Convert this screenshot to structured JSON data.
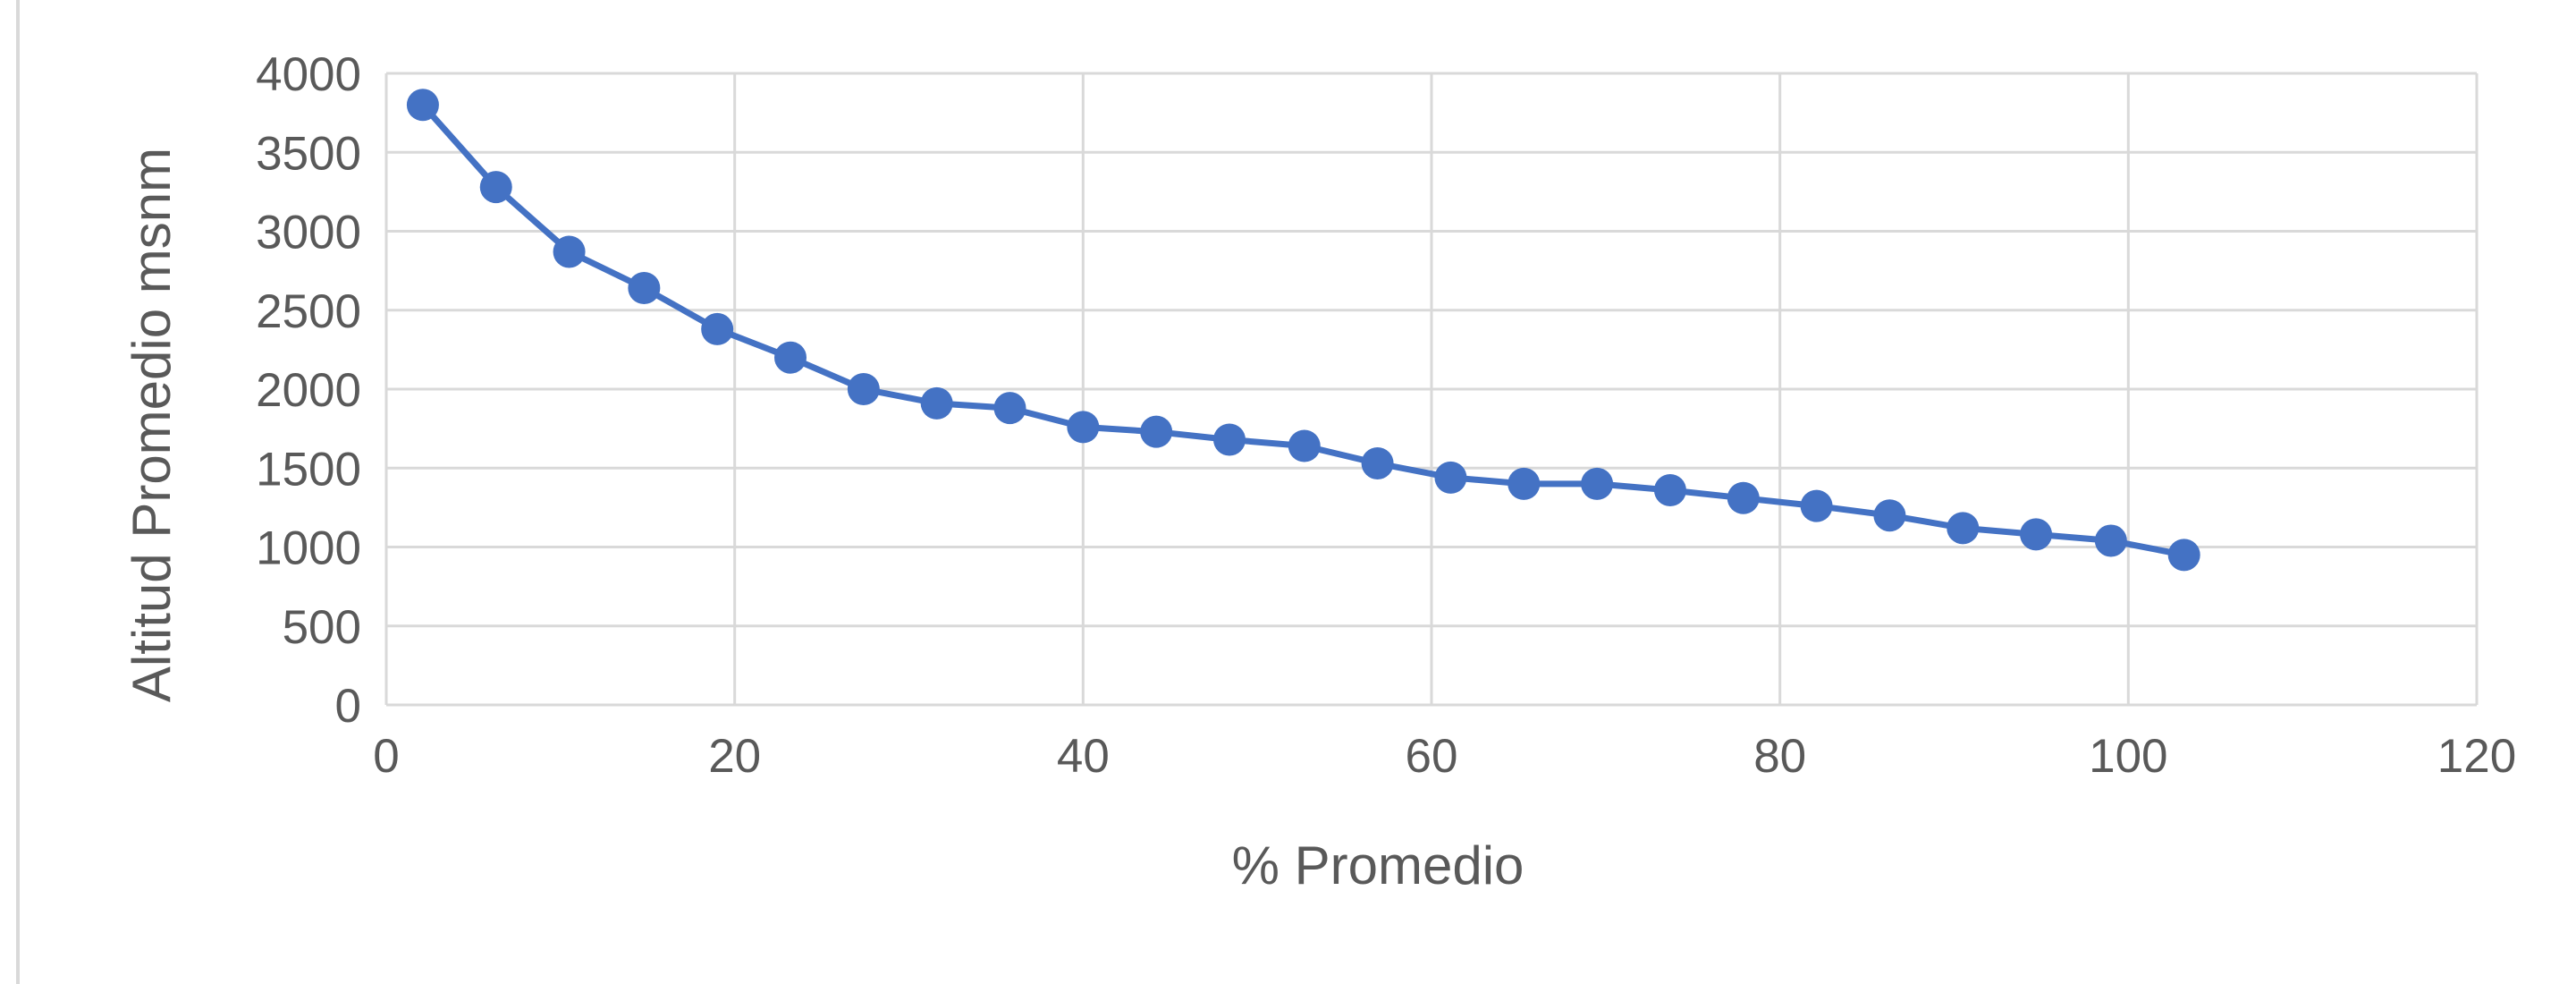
{
  "chart_data": {
    "type": "line",
    "title": "",
    "xlabel": "% Promedio",
    "ylabel": "Altitud Promedio  msnm",
    "xlim": [
      0,
      120
    ],
    "ylim": [
      0,
      4000
    ],
    "xticks": [
      0,
      20,
      40,
      60,
      80,
      100,
      120
    ],
    "yticks": [
      0,
      500,
      1000,
      1500,
      2000,
      2500,
      3000,
      3500,
      4000
    ],
    "grid": true,
    "legend": "none",
    "markers": true,
    "series": [
      {
        "color": "#4472c4",
        "points": [
          {
            "x": 2.1,
            "y": 3800
          },
          {
            "x": 6.3,
            "y": 3280
          },
          {
            "x": 10.5,
            "y": 2870
          },
          {
            "x": 14.8,
            "y": 2640
          },
          {
            "x": 19.0,
            "y": 2380
          },
          {
            "x": 23.2,
            "y": 2200
          },
          {
            "x": 27.4,
            "y": 2000
          },
          {
            "x": 31.6,
            "y": 1910
          },
          {
            "x": 35.8,
            "y": 1880
          },
          {
            "x": 40.0,
            "y": 1760
          },
          {
            "x": 44.2,
            "y": 1730
          },
          {
            "x": 48.4,
            "y": 1680
          },
          {
            "x": 52.7,
            "y": 1640
          },
          {
            "x": 56.9,
            "y": 1530
          },
          {
            "x": 61.1,
            "y": 1440
          },
          {
            "x": 65.3,
            "y": 1400
          },
          {
            "x": 69.5,
            "y": 1400
          },
          {
            "x": 73.7,
            "y": 1360
          },
          {
            "x": 77.9,
            "y": 1310
          },
          {
            "x": 82.1,
            "y": 1260
          },
          {
            "x": 86.3,
            "y": 1200
          },
          {
            "x": 90.5,
            "y": 1120
          },
          {
            "x": 94.7,
            "y": 1080
          },
          {
            "x": 99.0,
            "y": 1040
          },
          {
            "x": 103.2,
            "y": 950
          }
        ]
      }
    ]
  }
}
